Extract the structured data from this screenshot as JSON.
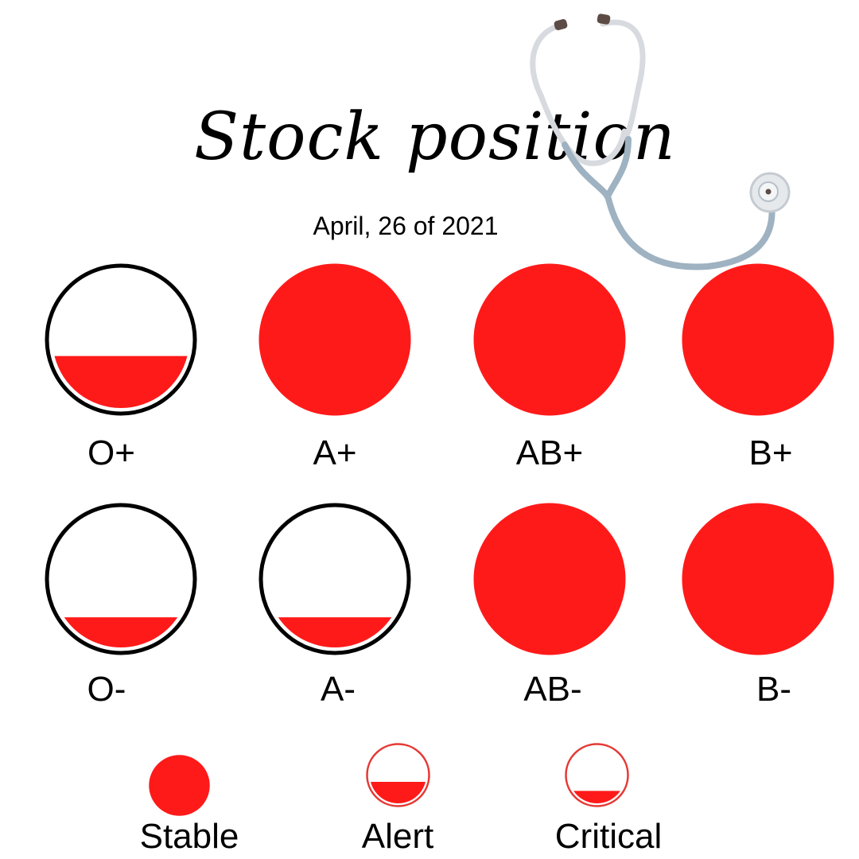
{
  "title": "Stock position",
  "date": "April, 26 of 2021",
  "colors": {
    "blood": "#ff1a1a",
    "outline": "#000000",
    "legend_outline": "#e53935",
    "background": "#ffffff"
  },
  "blood_types": [
    {
      "id": "o-pos",
      "label": "O+",
      "status": "Alert"
    },
    {
      "id": "a-pos",
      "label": "A+",
      "status": "Stable"
    },
    {
      "id": "ab-pos",
      "label": "AB+",
      "status": "Stable"
    },
    {
      "id": "b-pos",
      "label": "B+",
      "status": "Stable"
    },
    {
      "id": "o-neg",
      "label": "O-",
      "status": "Critical"
    },
    {
      "id": "a-neg",
      "label": "A-",
      "status": "Critical"
    },
    {
      "id": "ab-neg",
      "label": "AB-",
      "status": "Stable"
    },
    {
      "id": "b-neg",
      "label": "B-",
      "status": "Stable"
    }
  ],
  "legend": [
    {
      "label": "Stable",
      "status": "Stable"
    },
    {
      "label": "Alert",
      "status": "Alert"
    },
    {
      "label": "Critical",
      "status": "Critical"
    }
  ],
  "decoration": {
    "icon": "stethoscope-icon"
  }
}
